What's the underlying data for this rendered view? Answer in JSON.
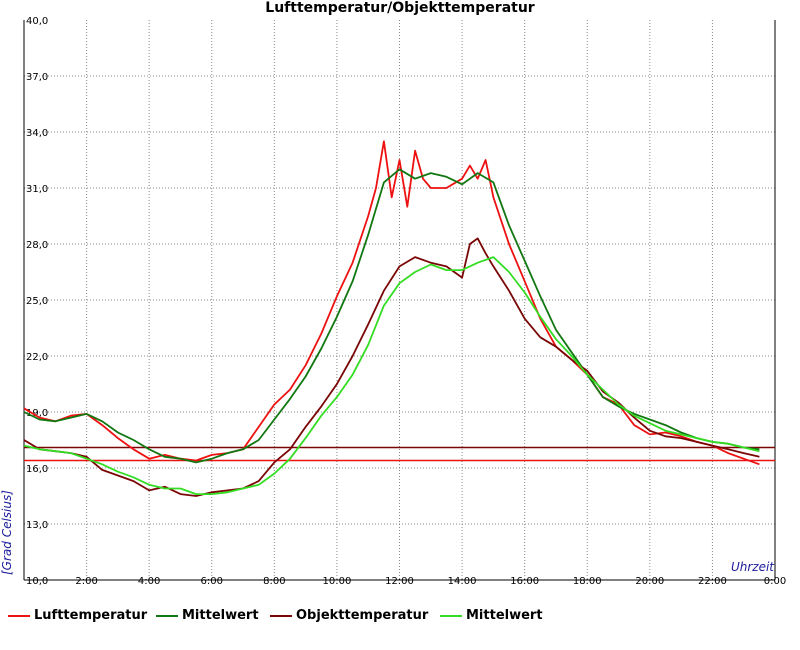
{
  "chart_data": {
    "type": "line",
    "title": "Lufttemperatur/Objekttemperatur",
    "ylabel": "[Grad Celsius]",
    "xlabel": "Uhrzeit",
    "ylim": [
      10,
      40
    ],
    "xlim": [
      0,
      24
    ],
    "y_ticks": [
      "40,0",
      "37,0",
      "34,0",
      "31,0",
      "28,0",
      "25,0",
      "22,0",
      "19,0",
      "16,0",
      "13,0",
      "10,0"
    ],
    "x_ticks": [
      "",
      "2:00",
      "4:00",
      "6:00",
      "8:00",
      "10:00",
      "12:00",
      "14:00",
      "16:00",
      "18:00",
      "20:00",
      "22:00",
      "0:00"
    ],
    "grid": true,
    "legend_position": "bottom",
    "series": [
      {
        "name": "Lufttemperatur",
        "color": "#ee1111",
        "x": [
          0,
          0.5,
          1,
          1.5,
          2,
          2.5,
          3,
          3.5,
          4,
          4.5,
          5,
          5.5,
          6,
          6.5,
          7,
          7.5,
          8,
          8.5,
          9,
          9.5,
          10,
          10.5,
          11,
          11.25,
          11.5,
          11.75,
          12,
          12.25,
          12.5,
          12.75,
          13,
          13.5,
          14,
          14.25,
          14.5,
          14.75,
          15,
          15.5,
          16,
          16.5,
          17,
          17.5,
          18,
          18.5,
          19,
          19.5,
          20,
          20.5,
          21,
          21.5,
          22,
          22.5,
          23,
          23.5
        ],
        "values": [
          19.2,
          18.7,
          18.5,
          18.8,
          18.9,
          18.3,
          17.6,
          17.0,
          16.5,
          16.7,
          16.5,
          16.4,
          16.7,
          16.8,
          17.0,
          18.2,
          19.4,
          20.2,
          21.5,
          23.2,
          25.2,
          27.0,
          29.5,
          31.0,
          33.5,
          30.5,
          32.5,
          30.0,
          33.0,
          31.5,
          31.0,
          31.0,
          31.5,
          32.2,
          31.5,
          32.5,
          30.5,
          28.0,
          26.0,
          24.0,
          22.5,
          21.8,
          21.0,
          19.8,
          19.4,
          18.3,
          17.8,
          17.9,
          17.7,
          17.4,
          17.2,
          16.8,
          16.5,
          16.2
        ]
      },
      {
        "name": "Mittelwert",
        "color": "#117711",
        "x": [
          0,
          0.5,
          1,
          1.5,
          2,
          2.5,
          3,
          3.5,
          4,
          4.5,
          5,
          5.5,
          6,
          6.5,
          7,
          7.5,
          8,
          8.5,
          9,
          9.5,
          10,
          10.5,
          11,
          11.5,
          12,
          12.5,
          13,
          13.5,
          14,
          14.5,
          15,
          15.5,
          16,
          16.5,
          17,
          17.5,
          18,
          18.5,
          19,
          19.5,
          20,
          20.5,
          21,
          21.5,
          22,
          22.5,
          23,
          23.5
        ],
        "values": [
          19.0,
          18.6,
          18.5,
          18.7,
          18.9,
          18.5,
          17.9,
          17.5,
          17.0,
          16.6,
          16.5,
          16.3,
          16.5,
          16.8,
          17.0,
          17.5,
          18.6,
          19.7,
          20.9,
          22.4,
          24.1,
          26.0,
          28.5,
          31.3,
          32.0,
          31.5,
          31.8,
          31.6,
          31.2,
          31.8,
          31.3,
          29.0,
          27.1,
          25.2,
          23.4,
          22.2,
          21.0,
          19.8,
          19.3,
          18.9,
          18.6,
          18.3,
          17.9,
          17.6,
          17.4,
          17.3,
          17.1,
          17.0
        ]
      },
      {
        "name": "Objekttemperatur",
        "color": "#7a0606",
        "x": [
          0,
          0.5,
          1,
          1.5,
          2,
          2.5,
          3,
          3.5,
          4,
          4.5,
          5,
          5.5,
          6,
          6.5,
          7,
          7.5,
          8,
          8.5,
          9,
          9.5,
          10,
          10.5,
          11,
          11.5,
          12,
          12.5,
          13,
          13.5,
          14,
          14.25,
          14.5,
          14.75,
          15,
          15.5,
          16,
          16.5,
          17,
          17.5,
          18,
          18.5,
          19,
          19.5,
          20,
          20.5,
          21,
          21.5,
          22,
          22.5,
          23,
          23.5
        ],
        "values": [
          17.5,
          17.0,
          16.9,
          16.8,
          16.6,
          15.9,
          15.6,
          15.3,
          14.8,
          15.0,
          14.6,
          14.5,
          14.7,
          14.8,
          14.9,
          15.3,
          16.3,
          17.0,
          18.2,
          19.3,
          20.5,
          22.0,
          23.7,
          25.5,
          26.8,
          27.3,
          27.0,
          26.8,
          26.2,
          28.0,
          28.3,
          27.5,
          26.8,
          25.5,
          24.0,
          23.0,
          22.5,
          21.8,
          21.2,
          20.1,
          19.5,
          18.7,
          18.0,
          17.7,
          17.6,
          17.4,
          17.2,
          17.0,
          16.8,
          16.6
        ]
      },
      {
        "name": "Mittelwert",
        "color": "#33dd22",
        "x": [
          0,
          0.5,
          1,
          1.5,
          2,
          2.5,
          3,
          3.5,
          4,
          4.5,
          5,
          5.5,
          6,
          6.5,
          7,
          7.5,
          8,
          8.5,
          9,
          9.5,
          10,
          10.5,
          11,
          11.5,
          12,
          12.5,
          13,
          13.5,
          14,
          14.5,
          15,
          15.5,
          16,
          16.5,
          17,
          17.5,
          18,
          18.5,
          19,
          19.5,
          20,
          20.5,
          21,
          21.5,
          22,
          22.5,
          23,
          23.5
        ],
        "values": [
          17.2,
          17.0,
          16.9,
          16.8,
          16.5,
          16.2,
          15.8,
          15.5,
          15.1,
          14.9,
          14.9,
          14.6,
          14.6,
          14.7,
          14.9,
          15.1,
          15.7,
          16.5,
          17.6,
          18.8,
          19.8,
          21.0,
          22.6,
          24.7,
          25.9,
          26.5,
          26.9,
          26.6,
          26.6,
          27.0,
          27.3,
          26.5,
          25.4,
          24.1,
          22.9,
          22.0,
          21.0,
          20.2,
          19.4,
          18.8,
          18.4,
          18.0,
          17.8,
          17.6,
          17.4,
          17.3,
          17.1,
          16.9
        ]
      }
    ],
    "reference_lines": [
      {
        "value": 17.1,
        "color": "#7a0606"
      },
      {
        "value": 16.4,
        "color": "#ee1111"
      }
    ]
  }
}
